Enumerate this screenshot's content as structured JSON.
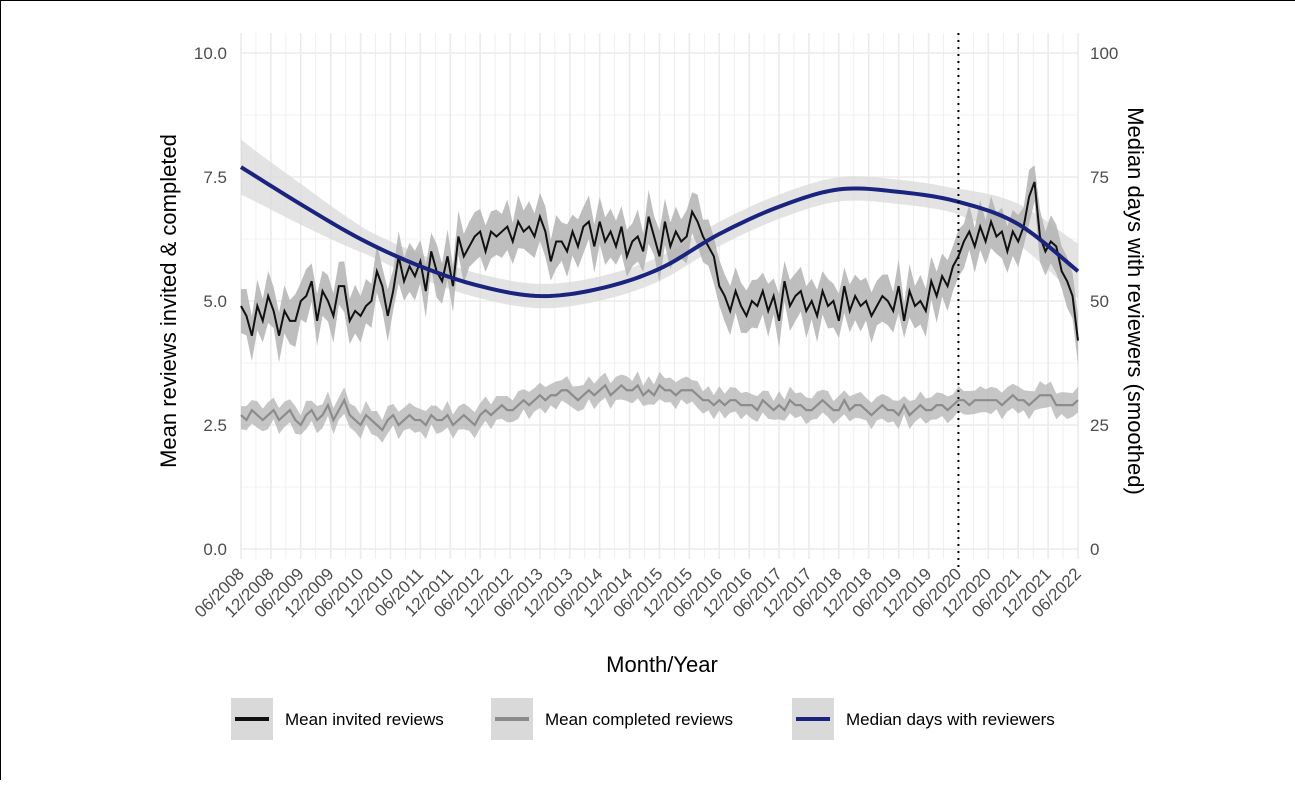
{
  "chart_data": {
    "type": "line",
    "xlabel": "Month/Year",
    "ylabel_left": "Mean reviews invited & completed",
    "ylabel_right": "Median days with reviewers (smoothed)",
    "ylim_left": [
      0,
      10
    ],
    "ylim_right": [
      0,
      100
    ],
    "yticks_left": [
      "0.0",
      "2.5",
      "5.0",
      "7.5",
      "10.0"
    ],
    "yticks_right": [
      "0",
      "25",
      "50",
      "75",
      "100"
    ],
    "x_start": "06/2008",
    "x_end": "06/2022",
    "x_tick_labels": [
      "06/2008",
      "12/2008",
      "06/2009",
      "12/2009",
      "06/2010",
      "12/2010",
      "06/2011",
      "12/2011",
      "06/2012",
      "12/2012",
      "06/2013",
      "12/2013",
      "06/2014",
      "12/2014",
      "06/2015",
      "12/2015",
      "06/2016",
      "12/2016",
      "06/2017",
      "12/2017",
      "06/2018",
      "12/2018",
      "06/2019",
      "12/2019",
      "06/2020",
      "12/2020",
      "06/2021",
      "12/2021",
      "06/2022"
    ],
    "vline": {
      "date": "06/2020",
      "style": "dotted"
    },
    "grid": true,
    "legend_position": "bottom",
    "colors": {
      "invited": "#111111",
      "completed": "#8c8c8c",
      "median": "#1a237e",
      "band": "#b3b3b3",
      "grid": "#ebebeb"
    },
    "series": [
      {
        "name": "Mean invited reviews",
        "axis": "left",
        "ci_halfwidth": 0.42,
        "values": [
          4.9,
          4.7,
          4.3,
          4.9,
          4.6,
          5.1,
          4.8,
          4.3,
          4.8,
          4.6,
          4.6,
          5.0,
          5.1,
          5.4,
          4.6,
          5.2,
          5.0,
          4.7,
          5.3,
          5.3,
          4.6,
          4.8,
          4.7,
          4.9,
          5.0,
          5.6,
          5.3,
          4.7,
          5.2,
          5.9,
          5.4,
          5.7,
          5.5,
          5.8,
          5.2,
          6.0,
          5.6,
          5.4,
          5.9,
          5.3,
          6.3,
          5.9,
          6.1,
          6.3,
          6.4,
          6.0,
          6.4,
          6.3,
          6.4,
          6.5,
          6.2,
          6.6,
          6.4,
          6.5,
          6.3,
          6.7,
          6.4,
          5.8,
          6.2,
          6.2,
          6.0,
          6.4,
          6.1,
          6.5,
          6.6,
          6.1,
          6.6,
          6.2,
          6.4,
          6.1,
          6.5,
          5.9,
          6.2,
          6.3,
          6.0,
          6.7,
          6.3,
          5.9,
          6.6,
          6.1,
          6.4,
          6.2,
          6.3,
          6.8,
          6.6,
          6.3,
          6.1,
          5.9,
          5.3,
          5.1,
          4.8,
          5.2,
          4.9,
          4.7,
          5.0,
          4.9,
          5.2,
          4.8,
          5.1,
          4.6,
          5.4,
          4.9,
          5.1,
          5.2,
          4.8,
          5.0,
          4.7,
          5.2,
          4.9,
          5.0,
          4.6,
          5.3,
          4.8,
          5.1,
          4.9,
          5.0,
          4.7,
          4.9,
          5.1,
          5.0,
          4.8,
          5.3,
          4.6,
          5.2,
          4.9,
          5.0,
          4.8,
          5.4,
          5.1,
          5.5,
          5.3,
          5.7,
          5.9,
          6.2,
          6.4,
          6.1,
          6.5,
          6.2,
          6.6,
          6.3,
          6.4,
          6.0,
          6.4,
          6.2,
          6.5,
          7.1,
          7.4,
          6.3,
          6.0,
          6.2,
          6.1,
          5.6,
          5.4,
          5.1,
          4.2
        ],
        "times": "monthly from 06/2008"
      },
      {
        "name": "Mean completed reviews",
        "axis": "left",
        "ci_halfwidth": 0.22,
        "values": [
          2.7,
          2.6,
          2.8,
          2.7,
          2.6,
          2.7,
          2.8,
          2.6,
          2.7,
          2.8,
          2.6,
          2.5,
          2.7,
          2.8,
          2.6,
          2.7,
          2.9,
          2.6,
          2.8,
          3.0,
          2.7,
          2.6,
          2.5,
          2.7,
          2.6,
          2.5,
          2.4,
          2.6,
          2.7,
          2.5,
          2.6,
          2.7,
          2.6,
          2.6,
          2.5,
          2.7,
          2.6,
          2.6,
          2.7,
          2.5,
          2.6,
          2.7,
          2.6,
          2.5,
          2.7,
          2.8,
          2.7,
          2.8,
          2.9,
          2.8,
          2.8,
          2.9,
          3.0,
          2.9,
          3.0,
          3.1,
          3.0,
          3.1,
          3.1,
          3.2,
          3.2,
          3.1,
          3.0,
          3.1,
          3.2,
          3.1,
          3.2,
          3.3,
          3.1,
          3.2,
          3.3,
          3.2,
          3.2,
          3.3,
          3.1,
          3.2,
          3.1,
          3.3,
          3.2,
          3.2,
          3.1,
          3.2,
          3.2,
          3.2,
          3.1,
          3.0,
          3.0,
          2.9,
          3.0,
          2.9,
          3.0,
          3.0,
          2.9,
          2.9,
          2.9,
          2.8,
          3.0,
          2.9,
          2.8,
          2.9,
          2.8,
          3.0,
          2.9,
          2.9,
          2.8,
          2.8,
          2.9,
          3.0,
          2.9,
          2.8,
          2.8,
          3.0,
          2.8,
          2.9,
          2.9,
          2.8,
          2.7,
          2.8,
          2.9,
          2.8,
          2.8,
          2.7,
          2.9,
          2.7,
          2.8,
          2.9,
          2.8,
          2.8,
          2.9,
          2.9,
          2.8,
          2.9,
          3.0,
          3.0,
          2.9,
          3.0,
          3.0,
          3.0,
          3.0,
          3.0,
          2.9,
          3.0,
          3.1,
          3.0,
          3.0,
          2.9,
          3.0,
          3.1,
          3.1,
          3.1,
          2.9,
          2.9,
          2.9,
          2.9,
          3.0
        ],
        "times": "monthly from 06/2008"
      },
      {
        "name": "Median days with reviewers",
        "axis": "right",
        "smoothed": true,
        "ci_halfwidth": 3.5,
        "x": [
          "06/2008",
          "06/2009",
          "06/2010",
          "06/2011",
          "06/2012",
          "06/2013",
          "06/2014",
          "06/2015",
          "06/2016",
          "06/2017",
          "06/2018",
          "06/2019",
          "06/2020",
          "06/2021",
          "06/2022"
        ],
        "values": [
          77,
          69.5,
          62.5,
          57,
          53,
          51,
          52.5,
          56.5,
          63.5,
          69,
          72.5,
          72,
          70,
          65.5,
          56
        ]
      }
    ],
    "legend": [
      {
        "label": "Mean invited reviews",
        "series": 0
      },
      {
        "label": "Mean completed reviews",
        "series": 1
      },
      {
        "label": "Median days with reviewers",
        "series": 2
      }
    ]
  }
}
